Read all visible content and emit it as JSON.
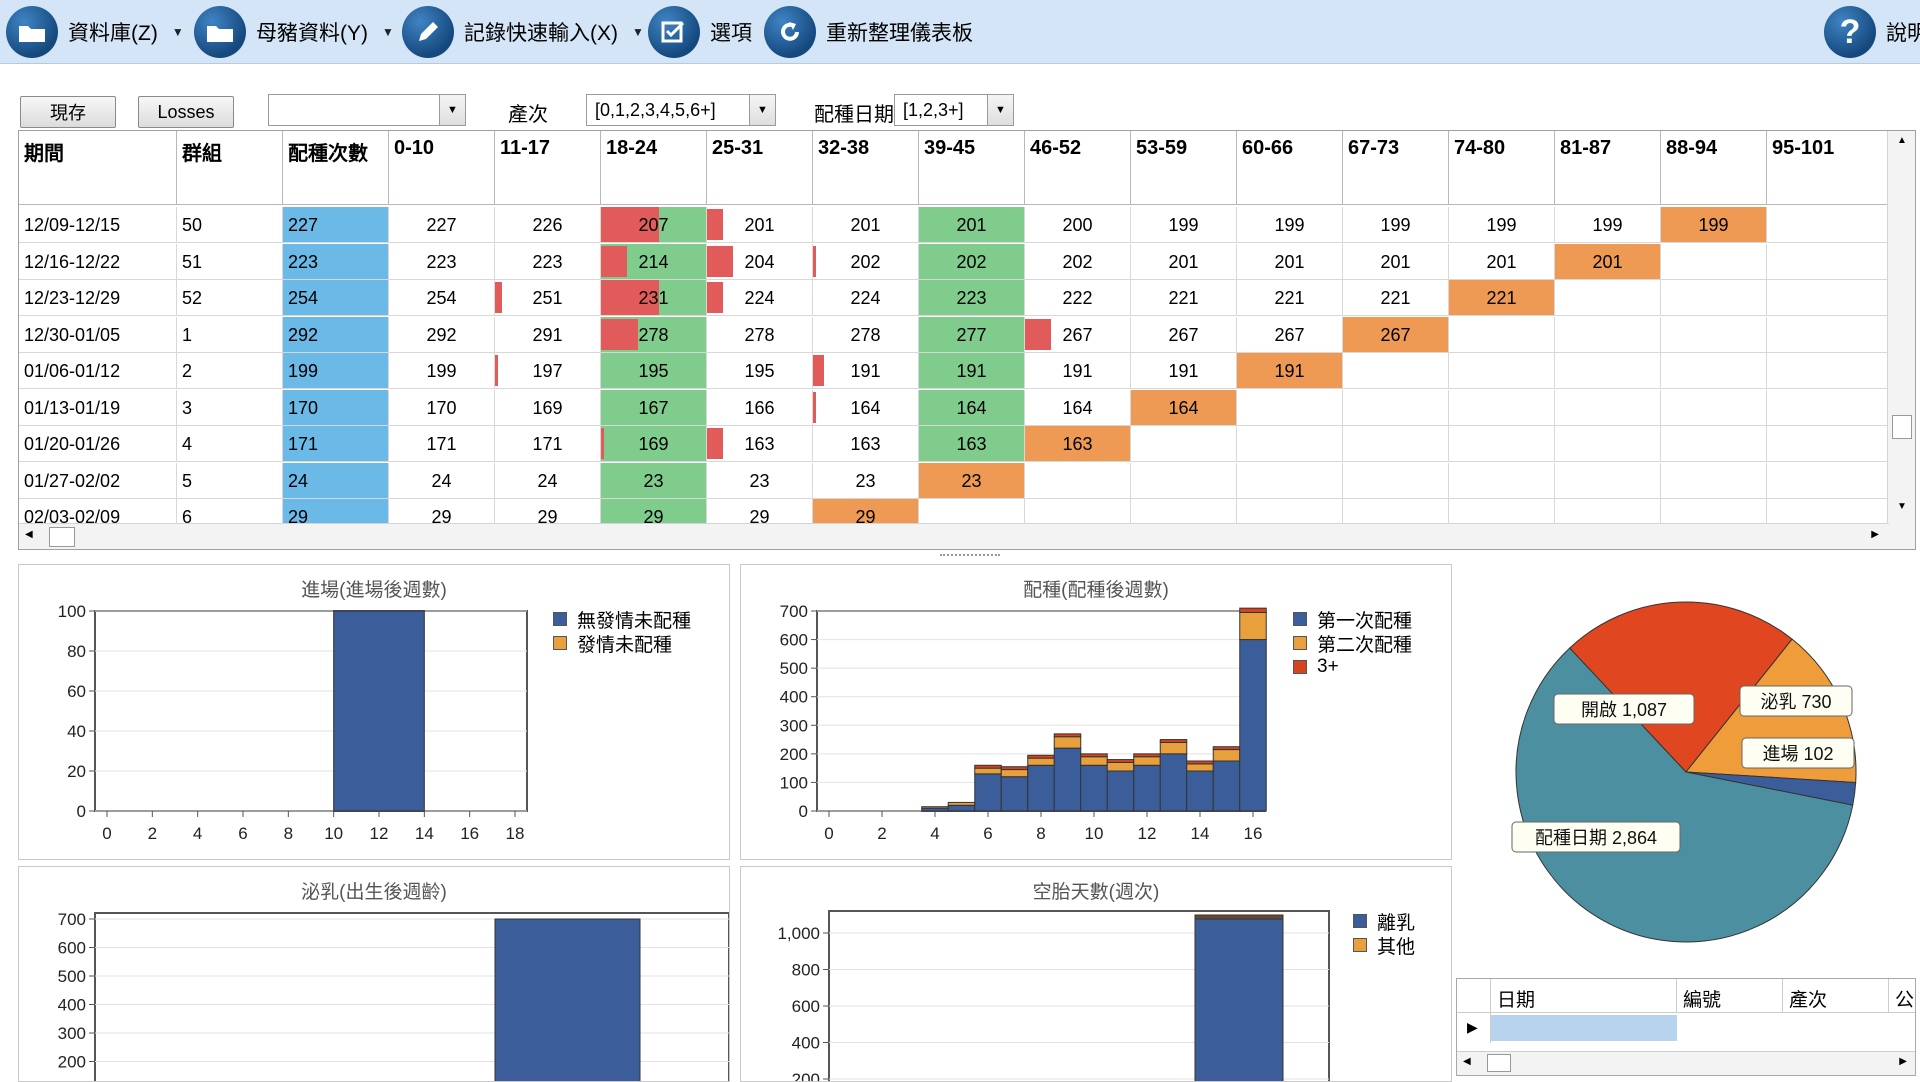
{
  "toolbar": {
    "database": "資料庫(Z)",
    "sow_data": "母豬資料(Y)",
    "quick_entry": "記錄快速輸入(X)",
    "options": "選項",
    "refresh": "重新整理儀表板",
    "help": "說明"
  },
  "filters": {
    "current_button": "現存",
    "losses_button": "Losses",
    "combo1_value": "",
    "parity_label": "產次",
    "parity_value": "[0,1,2,3,4,5,6+]",
    "breed_date_label": "配種日期",
    "breed_date_value": "[1,2,3+]"
  },
  "grid": {
    "columns": [
      "期間",
      "群組",
      "配種次數",
      "0-10",
      "11-17",
      "18-24",
      "25-31",
      "32-38",
      "39-45",
      "46-52",
      "53-59",
      "60-66",
      "67-73",
      "74-80",
      "81-87",
      "88-94",
      "95-101"
    ],
    "rows": [
      {
        "period": "12/09-12/15",
        "group": "50",
        "bred": "227",
        "vals": [
          "227",
          "226",
          "207",
          "201",
          "201",
          "201",
          "200",
          "199",
          "199",
          "199",
          "199",
          "199",
          "199",
          ""
        ]
      },
      {
        "period": "12/16-12/22",
        "group": "51",
        "bred": "223",
        "vals": [
          "223",
          "223",
          "214",
          "204",
          "202",
          "202",
          "202",
          "201",
          "201",
          "201",
          "201",
          "201",
          "",
          ""
        ]
      },
      {
        "period": "12/23-12/29",
        "group": "52",
        "bred": "254",
        "vals": [
          "254",
          "251",
          "231",
          "224",
          "224",
          "223",
          "222",
          "221",
          "221",
          "221",
          "221",
          "",
          "",
          ""
        ]
      },
      {
        "period": "12/30-01/05",
        "group": "1",
        "bred": "292",
        "vals": [
          "292",
          "291",
          "278",
          "278",
          "278",
          "277",
          "267",
          "267",
          "267",
          "267",
          "",
          "",
          "",
          ""
        ]
      },
      {
        "period": "01/06-01/12",
        "group": "2",
        "bred": "199",
        "vals": [
          "199",
          "197",
          "195",
          "195",
          "191",
          "191",
          "191",
          "191",
          "191",
          "",
          "",
          "",
          "",
          ""
        ]
      },
      {
        "period": "01/13-01/19",
        "group": "3",
        "bred": "170",
        "vals": [
          "170",
          "169",
          "167",
          "166",
          "164",
          "164",
          "164",
          "164",
          "",
          "",
          "",
          "",
          "",
          ""
        ]
      },
      {
        "period": "01/20-01/26",
        "group": "4",
        "bred": "171",
        "vals": [
          "171",
          "171",
          "169",
          "163",
          "163",
          "163",
          "163",
          "",
          "",
          "",
          "",
          "",
          "",
          ""
        ]
      },
      {
        "period": "01/27-02/02",
        "group": "5",
        "bred": "24",
        "vals": [
          "24",
          "24",
          "23",
          "23",
          "23",
          "23",
          "",
          "",
          "",
          "",
          "",
          "",
          "",
          ""
        ]
      },
      {
        "period": "02/03-02/09",
        "group": "6",
        "bred": "29",
        "vals": [
          "29",
          "29",
          "29",
          "29",
          "29",
          "",
          "",
          "",
          "",
          "",
          "",
          "",
          "",
          ""
        ]
      }
    ]
  },
  "charts": {
    "entry": {
      "title": "進場(進場後週數)",
      "legend": [
        "無發情未配種",
        "發情未配種"
      ],
      "yticks": [
        "0",
        "20",
        "40",
        "60",
        "80",
        "100"
      ],
      "xticks": [
        "0",
        "2",
        "4",
        "6",
        "8",
        "10",
        "12",
        "14",
        "16",
        "18"
      ]
    },
    "breeding": {
      "title": "配種(配種後週數)",
      "legend": [
        "第一次配種",
        "第二次配種",
        "3+"
      ],
      "yticks": [
        "0",
        "100",
        "200",
        "300",
        "400",
        "500",
        "600",
        "700"
      ],
      "xticks": [
        "0",
        "2",
        "4",
        "6",
        "8",
        "10",
        "12",
        "14",
        "16"
      ]
    },
    "weaning": {
      "title": "泌乳(出生後週齡)",
      "yticks": [
        "200",
        "300",
        "400",
        "500",
        "600",
        "700"
      ]
    },
    "open_days": {
      "title": "空胎天數(週次)",
      "legend": [
        "離乳",
        "其他"
      ],
      "yticks": [
        "200",
        "400",
        "600",
        "800",
        "1,000"
      ]
    },
    "pie_labels": {
      "open": "開啟 1,087",
      "lactating": "泌乳 730",
      "entry": "進場 102",
      "bred": "配種日期 2,864"
    }
  },
  "mini_grid": {
    "columns": [
      "日期",
      "編號",
      "產次",
      "公"
    ]
  },
  "colors": {
    "toolbar_bg": "#d3e5f6",
    "series_blue": "#3b5e9a",
    "series_orange": "#e7a03c",
    "series_red": "#d6431f",
    "pie_teal": "#4c8fa0",
    "pie_red": "#e0461f",
    "pie_orange": "#ef9d3a",
    "pie_blue": "#3b5e9a"
  },
  "chart_data": [
    {
      "type": "bar",
      "title": "進場(進場後週數)",
      "series": [
        {
          "name": "無發情未配種",
          "x": [
            12
          ],
          "values": [
            100
          ]
        },
        {
          "name": "發情未配種",
          "x": [],
          "values": []
        }
      ],
      "xlim": [
        0,
        18
      ],
      "ylim": [
        0,
        100
      ]
    },
    {
      "type": "bar",
      "title": "配種(配種後週數)",
      "x": [
        4,
        5,
        6,
        7,
        8,
        9,
        10,
        11,
        12,
        13,
        14,
        15,
        16
      ],
      "series": [
        {
          "name": "第一次配種",
          "values": [
            10,
            20,
            130,
            120,
            160,
            220,
            160,
            140,
            160,
            200,
            140,
            175,
            600
          ]
        },
        {
          "name": "第二次配種",
          "values": [
            5,
            10,
            20,
            25,
            25,
            40,
            30,
            30,
            30,
            40,
            25,
            40,
            95
          ]
        },
        {
          "name": "3+",
          "values": [
            0,
            0,
            10,
            10,
            10,
            10,
            10,
            10,
            10,
            10,
            10,
            10,
            15
          ]
        }
      ],
      "xlim": [
        0,
        17
      ],
      "ylim": [
        0,
        700
      ]
    },
    {
      "type": "bar",
      "title": "泌乳(出生後週齡)",
      "series": [
        {
          "name": "",
          "values": [
            700
          ]
        }
      ],
      "ylim": [
        0,
        700
      ]
    },
    {
      "type": "bar",
      "title": "空胎天數(週次)",
      "series": [
        {
          "name": "離乳",
          "values": [
            1060
          ]
        },
        {
          "name": "其他",
          "values": [
            20
          ]
        }
      ],
      "ylim": [
        0,
        1100
      ]
    },
    {
      "type": "pie",
      "labels": [
        "開啟",
        "泌乳",
        "進場",
        "配種日期"
      ],
      "values": [
        1087,
        730,
        102,
        2864
      ]
    }
  ]
}
